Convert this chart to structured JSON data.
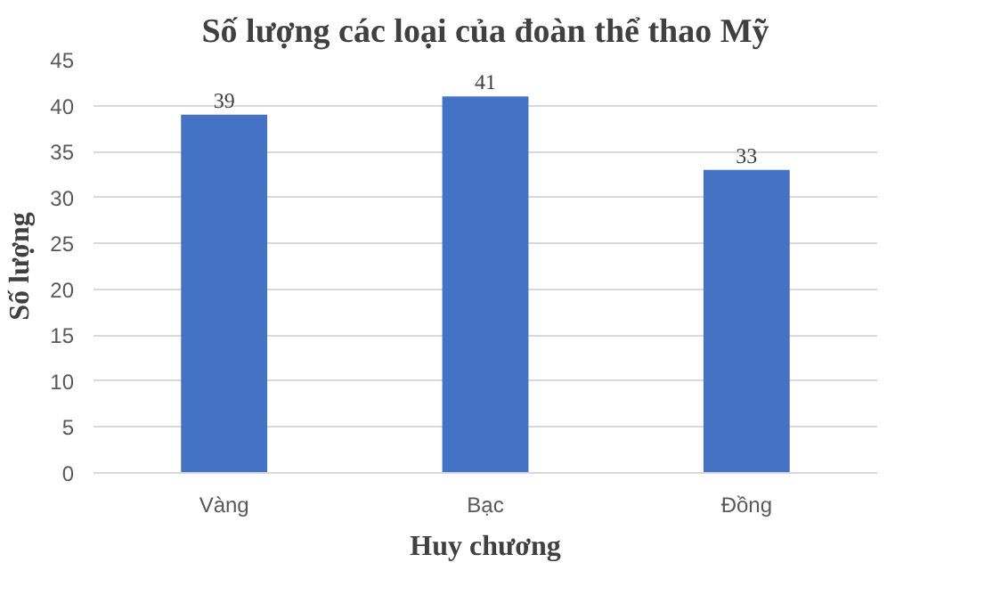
{
  "chart_data": {
    "type": "bar",
    "title": "Số lượng các loại của đoàn thể thao Mỹ",
    "xlabel": "Huy chương",
    "ylabel": "Số lượng",
    "categories": [
      "Vàng",
      "Bạc",
      "Đồng"
    ],
    "values": [
      39,
      41,
      33
    ],
    "color": "#4472c4",
    "ylim": [
      0,
      45
    ],
    "yticks": [
      0,
      5,
      10,
      15,
      20,
      25,
      30,
      35,
      40,
      45
    ],
    "grid": "y",
    "data_labels": true
  }
}
